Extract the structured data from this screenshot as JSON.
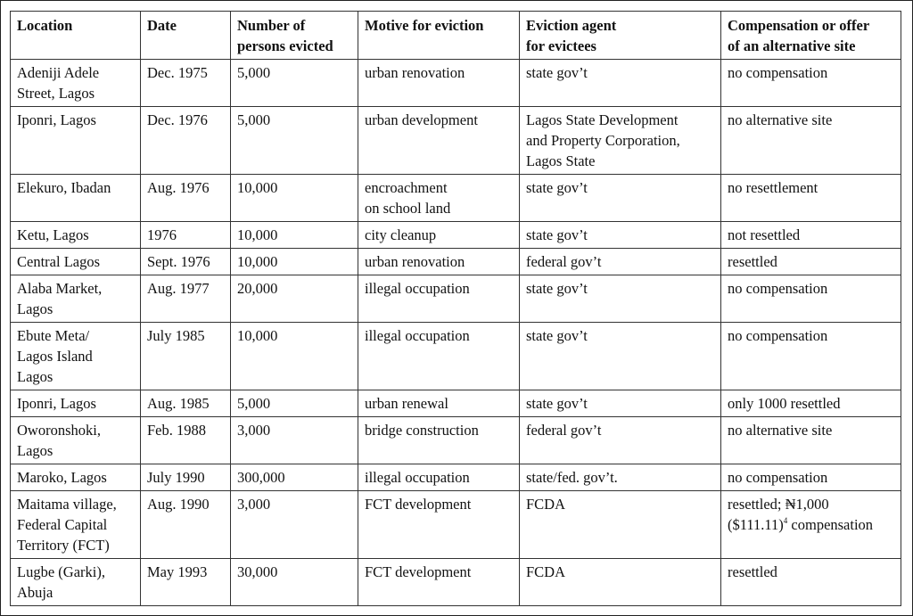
{
  "columns": [
    "Location",
    "Date",
    "Number of\npersons evicted",
    "Motive for eviction",
    "Eviction agent\nfor evictees",
    "Compensation or offer\nof an alternative site"
  ],
  "rows": [
    {
      "location": "Adeniji Adele\nStreet, Lagos",
      "date": "Dec. 1975",
      "number": "5,000",
      "motive": "urban renovation",
      "agent": "state gov’t",
      "compensation": "no compensation"
    },
    {
      "location": "Iponri, Lagos",
      "date": "Dec. 1976",
      "number": "5,000",
      "motive": "urban development",
      "agent": "Lagos State Development\nand Property Corporation,\nLagos State",
      "compensation": "no alternative site"
    },
    {
      "location": "Elekuro, Ibadan",
      "date": "Aug. 1976",
      "number": "10,000",
      "motive": "encroachment\non school land",
      "agent": "state gov’t",
      "compensation": "no resettlement"
    },
    {
      "location": "Ketu, Lagos",
      "date": "1976",
      "number": "10,000",
      "motive": "city cleanup",
      "agent": "state gov’t",
      "compensation": "not resettled"
    },
    {
      "location": "Central Lagos",
      "date": "Sept. 1976",
      "number": "10,000",
      "motive": "urban renovation",
      "agent": "federal gov’t",
      "compensation": "resettled"
    },
    {
      "location": "Alaba Market,\nLagos",
      "date": "Aug. 1977",
      "number": "20,000",
      "motive": "illegal occupation",
      "agent": "state gov’t",
      "compensation": "no compensation"
    },
    {
      "location": "Ebute Meta/\nLagos Island\nLagos",
      "date": "July 1985",
      "number": "10,000",
      "motive": "illegal occupation",
      "agent": "state gov’t",
      "compensation": "no compensation"
    },
    {
      "location": "Iponri, Lagos",
      "date": "Aug. 1985",
      "number": "5,000",
      "motive": "urban renewal",
      "agent": "state gov’t",
      "compensation": "only 1000 resettled"
    },
    {
      "location": "Oworonshoki,\nLagos",
      "date": "Feb. 1988",
      "number": "3,000",
      "motive": "bridge construction",
      "agent": "federal gov’t",
      "compensation": "no alternative site"
    },
    {
      "location": "Maroko, Lagos",
      "date": "July 1990",
      "number": "300,000",
      "motive": "illegal occupation",
      "agent": "state/fed. gov’t.",
      "compensation": "no compensation"
    },
    {
      "location": "Maitama village,\nFederal Capital\nTerritory (FCT)",
      "date": "Aug. 1990",
      "number": "3,000",
      "motive": "FCT development",
      "agent": "FCDA",
      "compensation": "resettled; ₦1,000\n($111.11)",
      "compensation_note": "4",
      "compensation_tail": " compensation"
    },
    {
      "location": "Lugbe (Garki),\nAbuja",
      "date": "May 1993",
      "number": "30,000",
      "motive": "FCT development",
      "agent": "FCDA",
      "compensation": "resettled"
    }
  ]
}
